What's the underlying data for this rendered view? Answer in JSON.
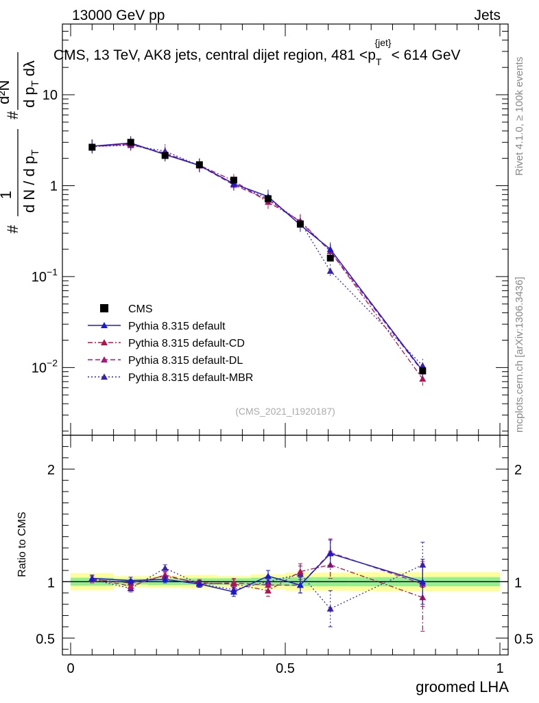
{
  "header": {
    "energy_label": "13000 GeV pp",
    "category_label": "Jets"
  },
  "side_labels": {
    "rivet": "Rivet 4.1.0, ≥ 100k events",
    "mcplots": "mcplots.cern.ch [arXiv:1306.3436]"
  },
  "watermark": "(CMS_2021_I1920187)",
  "chart_data": [
    {
      "type": "line",
      "panel": "main",
      "title": "CMS, 13 TeV, AK8 jets, central dijet region, 481 <p_T^{jet}< 614 GeV",
      "title_parts": {
        "before": "CMS, 13 TeV, AK8 jets, central dijet region, 481 <p",
        "sub": "T",
        "sup": "{jet}",
        "after": "< 614 GeV"
      },
      "ylabel": "1/(dN/dp_T) d²N/(dp_T dλ)",
      "ylabel_parts": {
        "frac1_num": "1",
        "frac1_den": "d N / d p",
        "frac2_num": "d²N",
        "frac2_den": "d p",
        "dlambda": "dλ",
        "hash": "#",
        "sub": "T",
        "sup": "2"
      },
      "xlabel": "groomed LHA",
      "yscale": "log",
      "xlim": [
        0,
        1
      ],
      "ylim": [
        0.0018,
        60
      ],
      "ytick_labels": [
        {
          "value": 10,
          "base": "10",
          "exp": ""
        },
        {
          "value": 1,
          "base": "1",
          "exp": ""
        },
        {
          "value": 0.1,
          "base": "10",
          "exp": "−1"
        },
        {
          "value": 0.01,
          "base": "10",
          "exp": "−2"
        }
      ],
      "x": [
        0.05,
        0.14,
        0.22,
        0.3,
        0.38,
        0.46,
        0.535,
        0.605,
        0.82
      ],
      "series": [
        {
          "name": "CMS",
          "style": "data",
          "color": "#000000",
          "values": [
            2.65,
            3.0,
            2.15,
            1.7,
            1.15,
            0.72,
            0.38,
            0.16,
            0.0092
          ]
        },
        {
          "name": "Pythia 8.315 default",
          "style": "solid",
          "color": "#1a1ad6",
          "marker": "triangle",
          "values": [
            2.72,
            2.95,
            2.2,
            1.67,
            1.05,
            0.76,
            0.37,
            0.2,
            0.0092
          ]
        },
        {
          "name": "Pythia 8.315 default-CD",
          "style": "dashdot",
          "color": "#b2124f",
          "marker": "triangle",
          "values": [
            2.68,
            2.88,
            2.22,
            1.68,
            1.13,
            0.66,
            0.41,
            0.19,
            0.0075
          ]
        },
        {
          "name": "Pythia 8.315 default-DL",
          "style": "dashed",
          "color": "#b2127a",
          "marker": "triangle",
          "values": [
            2.7,
            2.85,
            2.28,
            1.66,
            1.02,
            0.7,
            0.4,
            0.19,
            0.009
          ]
        },
        {
          "name": "Pythia 8.315 default-MBR",
          "style": "dotted",
          "color": "#3a20b5",
          "marker": "triangle",
          "values": [
            2.7,
            2.78,
            2.4,
            1.66,
            1.05,
            0.72,
            0.4,
            0.115,
            0.0105
          ]
        }
      ]
    },
    {
      "type": "line",
      "panel": "ratio",
      "ylabel": "Ratio to CMS",
      "xlabel": "groomed LHA",
      "xlim": [
        0,
        1
      ],
      "ylim": [
        0.35,
        2.3
      ],
      "yticks": [
        0.5,
        1,
        2
      ],
      "ytick_labels": [
        "0.5",
        "1",
        "2"
      ],
      "xticks": [
        0,
        0.5,
        1
      ],
      "xtick_labels": [
        "0",
        "0.5",
        "1"
      ],
      "x": [
        0.05,
        0.14,
        0.22,
        0.3,
        0.38,
        0.46,
        0.535,
        0.605,
        0.82
      ],
      "bands": {
        "bins": [
          0.0,
          0.1,
          0.18,
          0.26,
          0.34,
          0.42,
          0.5,
          0.57,
          0.65,
          1.0
        ],
        "inner_halfwidth": [
          0.035,
          0.025,
          0.03,
          0.03,
          0.03,
          0.035,
          0.04,
          0.04,
          0.04
        ],
        "outer_halfwidth": [
          0.075,
          0.05,
          0.055,
          0.06,
          0.05,
          0.065,
          0.08,
          0.08,
          0.085
        ],
        "inner_color": "#90f090",
        "outer_color": "#ffff99"
      },
      "series": [
        {
          "name": "Pythia 8.315 default",
          "style": "solid",
          "color": "#1a1ad6",
          "values": [
            1.03,
            1.01,
            1.02,
            0.98,
            0.91,
            1.05,
            0.97,
            1.25,
            1.0
          ],
          "errors": [
            0.03,
            0.03,
            0.03,
            0.03,
            0.04,
            0.05,
            0.07,
            0.12,
            0.2
          ]
        },
        {
          "name": "Pythia 8.315 default-CD",
          "style": "dashdot",
          "color": "#b2124f",
          "values": [
            1.02,
            0.99,
            1.05,
            0.99,
            0.98,
            0.92,
            1.09,
            1.15,
            0.86
          ],
          "errors": [
            0.03,
            0.03,
            0.03,
            0.03,
            0.04,
            0.05,
            0.07,
            0.12,
            0.3
          ]
        },
        {
          "name": "Pythia 8.315 default-DL",
          "style": "dashed",
          "color": "#b2127a",
          "values": [
            1.03,
            0.96,
            1.06,
            0.98,
            0.99,
            0.97,
            0.97,
            1.26,
            0.98
          ],
          "errors": [
            0.03,
            0.03,
            0.03,
            0.03,
            0.04,
            0.05,
            0.07,
            0.12,
            0.2
          ]
        },
        {
          "name": "Pythia 8.315 default-MBR",
          "style": "dotted",
          "color": "#3a20b5",
          "values": [
            1.02,
            0.94,
            1.12,
            0.98,
            0.93,
            1.0,
            1.07,
            0.76,
            1.15
          ],
          "errors": [
            0.03,
            0.03,
            0.03,
            0.03,
            0.04,
            0.05,
            0.07,
            0.16,
            0.2
          ]
        }
      ],
      "reference": {
        "name": "CMS",
        "value": 1
      }
    }
  ]
}
